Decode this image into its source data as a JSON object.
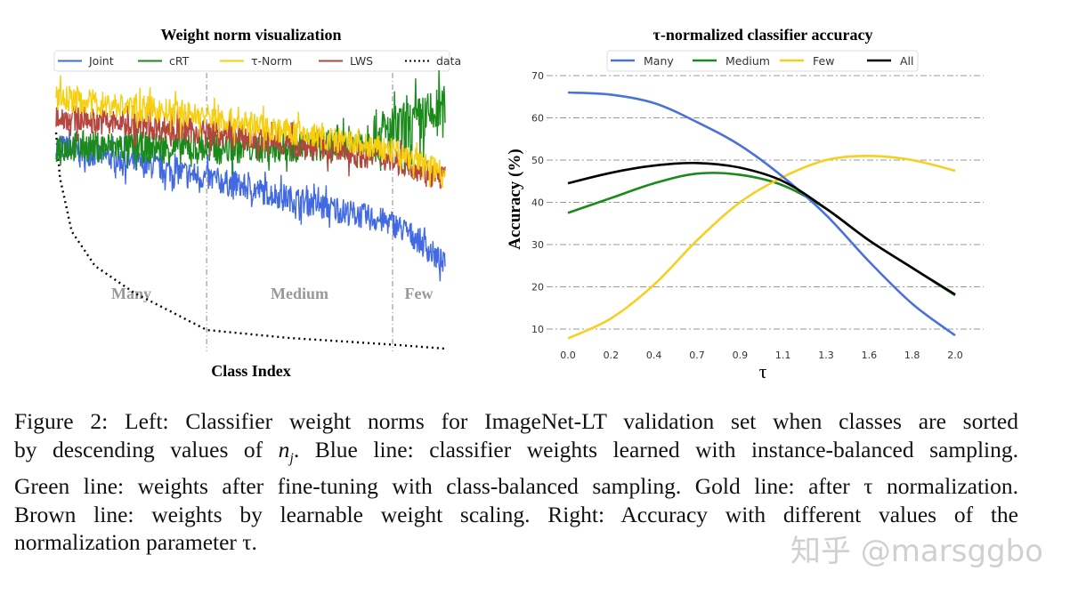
{
  "chart_data": [
    {
      "type": "line",
      "title": "Weight norm visualization",
      "xlabel": "Class Index",
      "ylabel": "",
      "regions": [
        {
          "label": "Many",
          "end": 0.387
        },
        {
          "label": "Medium",
          "end": 0.865
        },
        {
          "label": "Few",
          "end": 1.0
        }
      ],
      "ylim": [
        0,
        100
      ],
      "legend_placement": "top",
      "series": [
        {
          "name": "Joint",
          "color": "#4169e1",
          "style": "solid",
          "noisy": true,
          "x": [
            0,
            0.387,
            0.865,
            0.93,
            1
          ],
          "y": [
            77,
            65,
            48,
            42,
            32
          ]
        },
        {
          "name": "cRT",
          "color": "#1a8a1a",
          "style": "solid",
          "noisy": true,
          "x": [
            0,
            0.387,
            0.7,
            0.865,
            1
          ],
          "y": [
            77,
            76,
            77,
            82,
            90
          ]
        },
        {
          "name": "τ-Norm",
          "color": "#f5cf10",
          "style": "solid",
          "noisy": true,
          "x": [
            0,
            0.387,
            0.865,
            1
          ],
          "y": [
            95,
            88,
            75,
            67
          ]
        },
        {
          "name": "LWS",
          "color": "#b5453f",
          "style": "solid",
          "noisy": true,
          "x": [
            0,
            0.387,
            0.865,
            1
          ],
          "y": [
            88,
            82,
            72,
            65
          ]
        },
        {
          "name": "data",
          "color": "#000000",
          "style": "dotted",
          "noisy": false,
          "x": [
            0,
            0.01,
            0.04,
            0.1,
            0.2,
            0.387,
            0.6,
            0.865,
            1
          ],
          "y": [
            82,
            65,
            45,
            32,
            22,
            8,
            5,
            2.5,
            1
          ]
        }
      ]
    },
    {
      "type": "line",
      "title": "τ-normalized classifier accuracy",
      "xlabel": "τ",
      "ylabel": "Accuracy (%)",
      "categories": [
        "0.0",
        "0.2",
        "0.4",
        "0.7",
        "0.9",
        "1.1",
        "1.3",
        "1.6",
        "1.8",
        "2.0"
      ],
      "yticks": [
        10,
        20,
        30,
        40,
        50,
        60,
        70
      ],
      "ylim": [
        8,
        70
      ],
      "grid": "horizontal dash-dot",
      "legend_placement": "top",
      "series": [
        {
          "name": "Many",
          "color": "#4a72d8",
          "values": [
            66,
            65.5,
            63.5,
            59,
            53.5,
            46,
            37,
            26,
            16,
            8.5
          ]
        },
        {
          "name": "Medium",
          "color": "#1a8a1a",
          "values": [
            37.5,
            41,
            44.5,
            46.8,
            46.5,
            44,
            38.5,
            31,
            24.5,
            18
          ]
        },
        {
          "name": "Few",
          "color": "#f5d020",
          "values": [
            7.8,
            12.5,
            20.5,
            31,
            40,
            46,
            50,
            51,
            50,
            47.5
          ]
        },
        {
          "name": "All",
          "color": "#000000",
          "values": [
            44.5,
            47,
            48.7,
            49.3,
            48.2,
            45,
            38.5,
            31,
            24.5,
            18.2
          ]
        }
      ]
    }
  ],
  "caption": {
    "lines": [
      "Figure 2: Left: Classifier weight norms for ImageNet-LT validation set when classes are sorted",
      "by descending values of n_j. Blue line: classifier weights learned with instance-balanced sampling.",
      "Green line: weights after fine-tuning with class-balanced sampling. Gold line: after τ normalization.",
      "Brown line: weights by learnable weight scaling. Right: Accuracy with different values of the",
      "normalization parameter τ."
    ]
  },
  "watermark": "知乎 @marsggbo"
}
